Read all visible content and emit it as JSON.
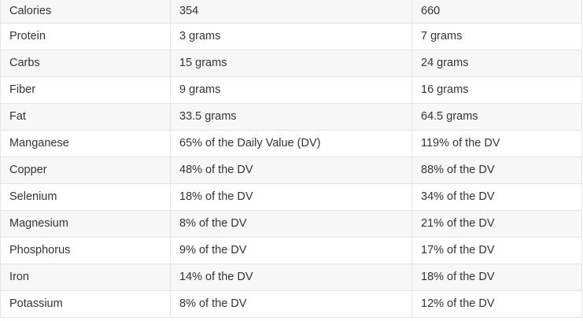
{
  "rows": [
    {
      "nutrient": "Calories",
      "v1": "354",
      "v2": "660"
    },
    {
      "nutrient": "Protein",
      "v1": "3 grams",
      "v2": "7 grams"
    },
    {
      "nutrient": "Carbs",
      "v1": "15 grams",
      "v2": "24 grams"
    },
    {
      "nutrient": "Fiber",
      "v1": "9 grams",
      "v2": "16 grams"
    },
    {
      "nutrient": "Fat",
      "v1": "33.5 grams",
      "v2": "64.5 grams"
    },
    {
      "nutrient": "Manganese",
      "v1": "65% of the Daily Value (DV)",
      "v2": "119% of the DV"
    },
    {
      "nutrient": "Copper",
      "v1": "48% of the DV",
      "v2": "88% of the DV"
    },
    {
      "nutrient": "Selenium",
      "v1": "18% of the DV",
      "v2": "34% of the DV"
    },
    {
      "nutrient": "Magnesium",
      "v1": "8% of the DV",
      "v2": "21% of the DV"
    },
    {
      "nutrient": "Phosphorus",
      "v1": "9% of the DV",
      "v2": "17% of the DV"
    },
    {
      "nutrient": "Iron",
      "v1": "14% of the DV",
      "v2": "18% of the DV"
    },
    {
      "nutrient": "Potassium",
      "v1": "8% of the DV",
      "v2": "12% of the DV"
    }
  ]
}
